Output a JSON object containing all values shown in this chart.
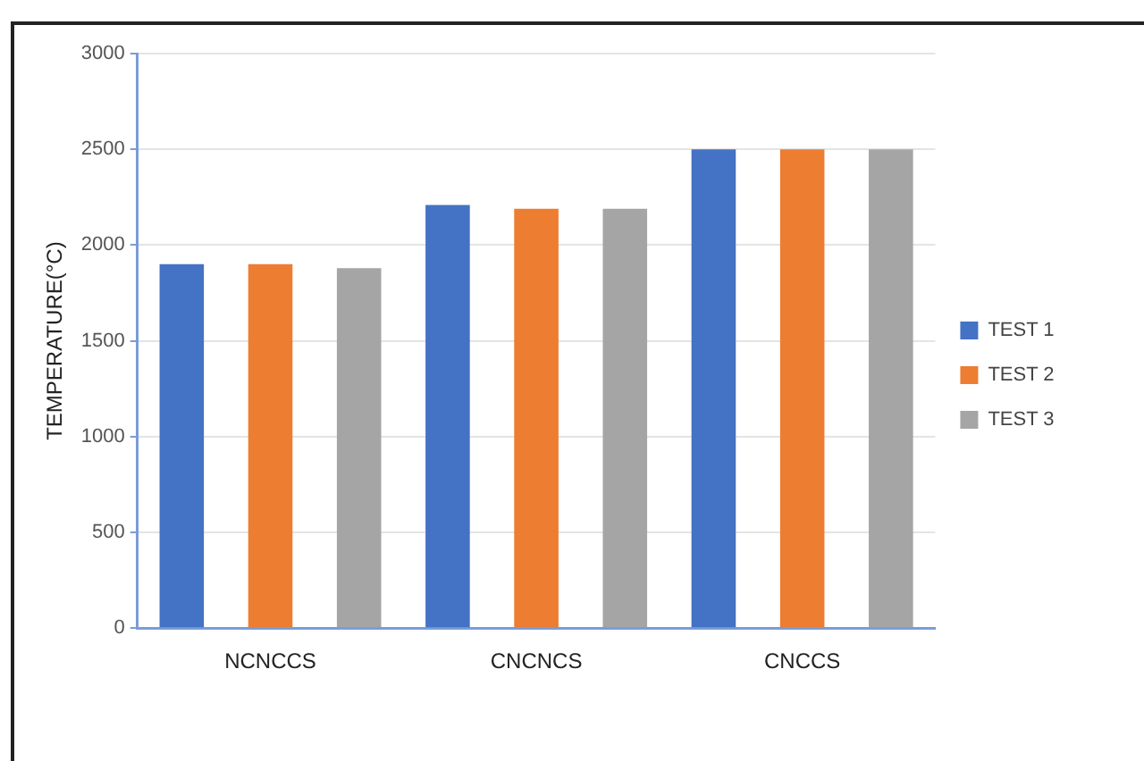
{
  "chart_data": {
    "type": "bar",
    "ylabel": "TEMPERATURE(°C)",
    "categories": [
      "NCNCCS",
      "CNCNCS",
      "CNCCS"
    ],
    "series": [
      {
        "name": "TEST 1",
        "color": "#4472c4",
        "values": [
          1900,
          2210,
          2500
        ]
      },
      {
        "name": "TEST 2",
        "color": "#ed7d31",
        "values": [
          1900,
          2190,
          2500
        ]
      },
      {
        "name": "TEST 3",
        "color": "#a5a5a5",
        "values": [
          1880,
          2190,
          2500
        ]
      }
    ],
    "ylim": [
      0,
      3000
    ],
    "yticks": [
      0,
      500,
      1000,
      1500,
      2000,
      2500,
      3000
    ],
    "grid": "y",
    "legend": "right"
  }
}
